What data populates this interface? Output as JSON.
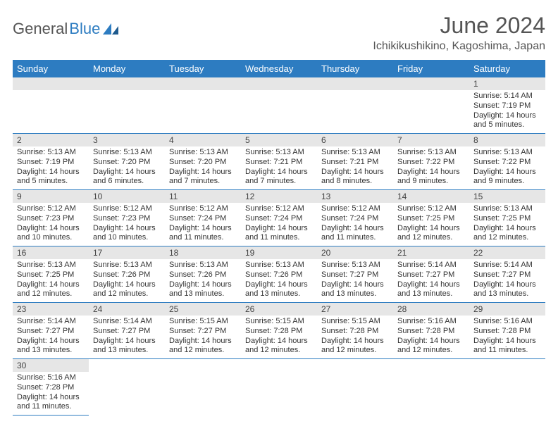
{
  "logo": {
    "part1": "General",
    "part2": "Blue"
  },
  "title": "June 2024",
  "location": "Ichikikushikino, Kagoshima, Japan",
  "colors": {
    "header_bg": "#2d7cc1",
    "header_text": "#ffffff",
    "daynum_bg": "#e6e6e6",
    "cell_border": "#2d7cc1",
    "logo_gray": "#555555",
    "logo_blue": "#2d7cc1"
  },
  "weekdays": [
    "Sunday",
    "Monday",
    "Tuesday",
    "Wednesday",
    "Thursday",
    "Friday",
    "Saturday"
  ],
  "layout": {
    "first_blank": 6,
    "days_in_month": 30
  },
  "days": {
    "1": {
      "sunrise": "5:14 AM",
      "sunset": "7:19 PM",
      "daylight": "14 hours and 5 minutes."
    },
    "2": {
      "sunrise": "5:13 AM",
      "sunset": "7:19 PM",
      "daylight": "14 hours and 5 minutes."
    },
    "3": {
      "sunrise": "5:13 AM",
      "sunset": "7:20 PM",
      "daylight": "14 hours and 6 minutes."
    },
    "4": {
      "sunrise": "5:13 AM",
      "sunset": "7:20 PM",
      "daylight": "14 hours and 7 minutes."
    },
    "5": {
      "sunrise": "5:13 AM",
      "sunset": "7:21 PM",
      "daylight": "14 hours and 7 minutes."
    },
    "6": {
      "sunrise": "5:13 AM",
      "sunset": "7:21 PM",
      "daylight": "14 hours and 8 minutes."
    },
    "7": {
      "sunrise": "5:13 AM",
      "sunset": "7:22 PM",
      "daylight": "14 hours and 9 minutes."
    },
    "8": {
      "sunrise": "5:13 AM",
      "sunset": "7:22 PM",
      "daylight": "14 hours and 9 minutes."
    },
    "9": {
      "sunrise": "5:12 AM",
      "sunset": "7:23 PM",
      "daylight": "14 hours and 10 minutes."
    },
    "10": {
      "sunrise": "5:12 AM",
      "sunset": "7:23 PM",
      "daylight": "14 hours and 10 minutes."
    },
    "11": {
      "sunrise": "5:12 AM",
      "sunset": "7:24 PM",
      "daylight": "14 hours and 11 minutes."
    },
    "12": {
      "sunrise": "5:12 AM",
      "sunset": "7:24 PM",
      "daylight": "14 hours and 11 minutes."
    },
    "13": {
      "sunrise": "5:12 AM",
      "sunset": "7:24 PM",
      "daylight": "14 hours and 11 minutes."
    },
    "14": {
      "sunrise": "5:12 AM",
      "sunset": "7:25 PM",
      "daylight": "14 hours and 12 minutes."
    },
    "15": {
      "sunrise": "5:13 AM",
      "sunset": "7:25 PM",
      "daylight": "14 hours and 12 minutes."
    },
    "16": {
      "sunrise": "5:13 AM",
      "sunset": "7:25 PM",
      "daylight": "14 hours and 12 minutes."
    },
    "17": {
      "sunrise": "5:13 AM",
      "sunset": "7:26 PM",
      "daylight": "14 hours and 12 minutes."
    },
    "18": {
      "sunrise": "5:13 AM",
      "sunset": "7:26 PM",
      "daylight": "14 hours and 13 minutes."
    },
    "19": {
      "sunrise": "5:13 AM",
      "sunset": "7:26 PM",
      "daylight": "14 hours and 13 minutes."
    },
    "20": {
      "sunrise": "5:13 AM",
      "sunset": "7:27 PM",
      "daylight": "14 hours and 13 minutes."
    },
    "21": {
      "sunrise": "5:14 AM",
      "sunset": "7:27 PM",
      "daylight": "14 hours and 13 minutes."
    },
    "22": {
      "sunrise": "5:14 AM",
      "sunset": "7:27 PM",
      "daylight": "14 hours and 13 minutes."
    },
    "23": {
      "sunrise": "5:14 AM",
      "sunset": "7:27 PM",
      "daylight": "14 hours and 13 minutes."
    },
    "24": {
      "sunrise": "5:14 AM",
      "sunset": "7:27 PM",
      "daylight": "14 hours and 13 minutes."
    },
    "25": {
      "sunrise": "5:15 AM",
      "sunset": "7:27 PM",
      "daylight": "14 hours and 12 minutes."
    },
    "26": {
      "sunrise": "5:15 AM",
      "sunset": "7:28 PM",
      "daylight": "14 hours and 12 minutes."
    },
    "27": {
      "sunrise": "5:15 AM",
      "sunset": "7:28 PM",
      "daylight": "14 hours and 12 minutes."
    },
    "28": {
      "sunrise": "5:16 AM",
      "sunset": "7:28 PM",
      "daylight": "14 hours and 12 minutes."
    },
    "29": {
      "sunrise": "5:16 AM",
      "sunset": "7:28 PM",
      "daylight": "14 hours and 11 minutes."
    },
    "30": {
      "sunrise": "5:16 AM",
      "sunset": "7:28 PM",
      "daylight": "14 hours and 11 minutes."
    }
  },
  "labels": {
    "sunrise": "Sunrise: ",
    "sunset": "Sunset: ",
    "daylight": "Daylight: "
  }
}
